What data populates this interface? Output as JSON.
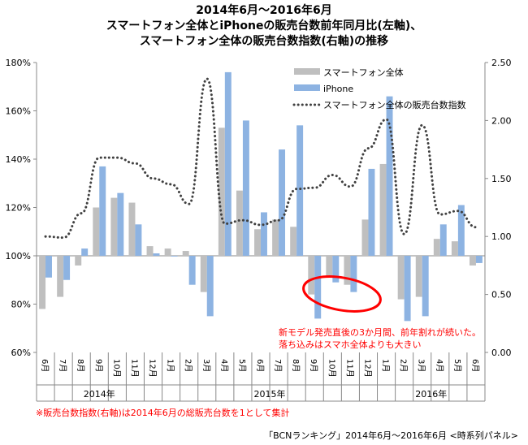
{
  "chart_data": {
    "type": "bar+line",
    "title_lines": [
      "2014年6月～2016年6月",
      "スマートフォン全体とiPhoneの販売台数前年同月比(左軸)、",
      "スマートフォン全体の販売台数指数(右軸)の推移"
    ],
    "categories": [
      "6月",
      "7月",
      "8月",
      "9月",
      "10月",
      "11月",
      "12月",
      "1月",
      "2月",
      "3月",
      "4月",
      "5月",
      "6月",
      "7月",
      "8月",
      "9月",
      "10月",
      "11月",
      "12月",
      "1月",
      "2月",
      "3月",
      "4月",
      "5月",
      "6月"
    ],
    "years": [
      {
        "label": "2014年",
        "start": 0,
        "end": 6
      },
      {
        "label": "2015年",
        "start": 7,
        "end": 18
      },
      {
        "label": "2016年",
        "start": 19,
        "end": 24
      }
    ],
    "left_axis": {
      "ylim": [
        60,
        180
      ],
      "ticks": [
        "60%",
        "80%",
        "100%",
        "120%",
        "140%",
        "160%",
        "180%"
      ]
    },
    "right_axis": {
      "ylim": [
        0,
        2.5
      ],
      "ticks": [
        "0.00",
        "0.50",
        "1.00",
        "1.50",
        "2.00",
        "2.50"
      ]
    },
    "series": [
      {
        "name": "スマートフォン全体",
        "type": "bar",
        "axis": "left",
        "color": "#bfbfbf",
        "values": [
          78,
          83,
          96,
          120,
          124,
          122,
          104,
          103,
          102,
          85,
          153,
          127,
          111,
          115,
          112,
          84,
          91,
          88,
          115,
          138,
          82,
          83,
          107,
          106,
          96
        ]
      },
      {
        "name": "iPhone",
        "type": "bar",
        "axis": "left",
        "color": "#8db3e2",
        "values": [
          91,
          90,
          103,
          137,
          126,
          113,
          101,
          99.7,
          88,
          75,
          176,
          156,
          118,
          144,
          154,
          74,
          89,
          85,
          136,
          166,
          73,
          75,
          113,
          121,
          97
        ]
      },
      {
        "name": "スマートフォン全体の販売台数指数",
        "type": "line",
        "axis": "right",
        "color": "#404040",
        "values": [
          1.0,
          0.99,
          1.2,
          1.68,
          1.68,
          1.63,
          1.5,
          1.45,
          1.28,
          2.36,
          1.11,
          1.14,
          1.1,
          1.14,
          1.41,
          1.42,
          1.53,
          1.43,
          1.76,
          2.01,
          1.02,
          1.96,
          1.19,
          1.22,
          1.08
        ]
      }
    ],
    "annotation": [
      "新モデル発売直後の3か月間、前年割れが続いた。",
      "落ち込みはスマホ全体よりも大きい"
    ],
    "footnote": "※販売台数指数(右軸)は2014年6月の総販売台数を1として集計",
    "source": "「BCNランキング」2014年6月～2016年6月 <時系列パネル>"
  }
}
